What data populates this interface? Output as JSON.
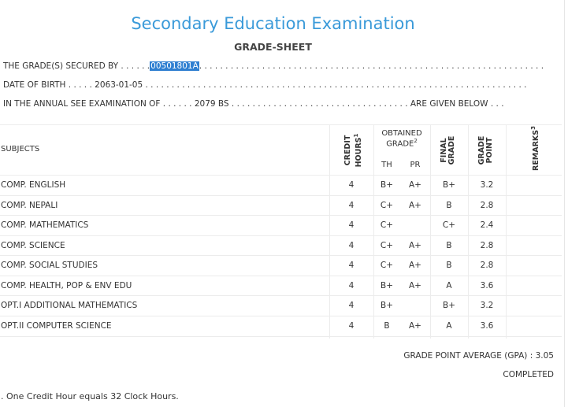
{
  "header": {
    "title": "Secondary Education Examination",
    "subtitle": "GRADE-SHEET"
  },
  "info": {
    "secured_prefix": "THE GRADE(S) SECURED BY . . . . . .",
    "symbol_number": "00501801A",
    "secured_suffix": ". . . . . . . . . . . . . . . . . . . . . . . . . . . . . . . . . . . . . . . . . . . . . . . . . . . . . . . . . . . . . . . . . .",
    "dob_line": "DATE OF BIRTH . . . . . 2063-01-05 . . . . . . . . . . . . . . . . . . . . . . . . . . . . . . . . . . . . . . . . . . . . . . . . . . . . . . . . . . . . . . . . . . . . . . . . .",
    "exam_line": "IN THE ANNUAL SEE EXAMINATION OF . . . . . . 2079 BS . . . . . . . . . . . . . . . . . . . . . . . . . . . . . . . . . . ARE GIVEN BELOW . . ."
  },
  "table": {
    "subjects_label": "SUBJECTS",
    "credit_label_1": "CREDIT",
    "credit_label_2": "HOURS",
    "credit_sup": "1",
    "obtained_label": "OBTAINED",
    "grade_label": "GRADE",
    "grade_sup": "2",
    "th_label": "TH",
    "pr_label": "PR",
    "final_label_1": "FINAL",
    "final_label_2": "GRADE",
    "gp_label_1": "GRADE",
    "gp_label_2": "POINT",
    "remarks_label": "REMARKS",
    "remarks_sup": "3",
    "rows": [
      {
        "subject": "COMP. ENGLISH",
        "credit": "4",
        "th": "B+",
        "pr": "A+",
        "final": "B+",
        "gp": "3.2"
      },
      {
        "subject": "COMP. NEPALI",
        "credit": "4",
        "th": "C+",
        "pr": "A+",
        "final": "B",
        "gp": "2.8"
      },
      {
        "subject": "COMP. MATHEMATICS",
        "credit": "4",
        "th": "C+",
        "pr": "",
        "final": "C+",
        "gp": "2.4"
      },
      {
        "subject": "COMP. SCIENCE",
        "credit": "4",
        "th": "C+",
        "pr": "A+",
        "final": "B",
        "gp": "2.8"
      },
      {
        "subject": "COMP. SOCIAL STUDIES",
        "credit": "4",
        "th": "C+",
        "pr": "A+",
        "final": "B",
        "gp": "2.8"
      },
      {
        "subject": "COMP. HEALTH, POP & ENV EDU",
        "credit": "4",
        "th": "B+",
        "pr": "A+",
        "final": "A",
        "gp": "3.6"
      },
      {
        "subject": "OPT.I ADDITIONAL MATHEMATICS",
        "credit": "4",
        "th": "B+",
        "pr": "",
        "final": "B+",
        "gp": "3.2"
      },
      {
        "subject": "OPT.II COMPUTER SCIENCE",
        "credit": "4",
        "th": "B",
        "pr": "A+",
        "final": "A",
        "gp": "3.6"
      }
    ]
  },
  "summary": {
    "gpa_text": "GRADE POINT AVERAGE (GPA) : 3.05",
    "status": "COMPLETED"
  },
  "footnote": ". One Credit Hour equals 32 Clock Hours."
}
